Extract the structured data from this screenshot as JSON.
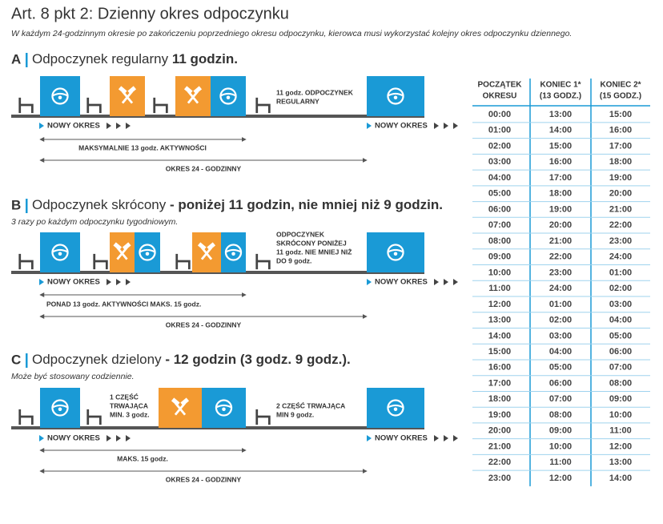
{
  "header": {
    "title": "Art. 8 pkt 2: Dzienny okres odpoczynku",
    "subtitle": "W każdym 24-godzinnym okresie po zakończeniu poprzedniego okresu odpoczynku, kierowca musi wykorzystać kolejny okres odpoczynku dziennego."
  },
  "sections": [
    {
      "letter": "A",
      "heading": "Odpoczynek regularny",
      "heading_bold": "11 godzin.",
      "rest_label": [
        "11 godz. ODPOCZYNEK",
        "REGULARNY"
      ],
      "new_period": [
        "NOWY OKRES",
        "NOWY OKRES"
      ],
      "span_short": "MAKSYMALNIE 13 godz. AKTYWNOŚCI",
      "span_long": "OKRES 24 - GODZINNY"
    },
    {
      "letter": "B",
      "heading": "Odpoczynek skrócony",
      "heading_bold": "- poniżej 11 godzin, nie mniej niż 9 godzin.",
      "note": "3 razy po każdym odpoczynku tygodniowym.",
      "rest_label": [
        "ODPOCZYNEK",
        "SKRÓCONY PONIŻEJ",
        "11 godz. NIE MNIEJ NIŻ",
        "DO 9 godz."
      ],
      "new_period": [
        "NOWY OKRES",
        "NOWY OKRES"
      ],
      "span_short": "PONAD 13 godz. AKTYWNOŚCI MAKS. 15 godz.",
      "span_long": "OKRES 24 - GODZINNY"
    },
    {
      "letter": "C",
      "heading": "Odpoczynek dzielony",
      "heading_bold": "- 12 godzin (3 godz. 9 godz.).",
      "note": "Może być stosowany codziennie.",
      "part1_label": [
        "1 CZĘŚĆ",
        "TRWAJĄCA",
        "MIN. 3 godz."
      ],
      "rest_label": [
        "2 CZĘŚĆ TRWAJĄCA",
        "MIN 9 godz."
      ],
      "new_period": [
        "NOWY OKRES",
        "NOWY OKRES"
      ],
      "span_short": "MAKS. 15 godz.",
      "span_long": "OKRES 24 - GODZINNY"
    }
  ],
  "table": {
    "columns": [
      [
        "POCZĄTEK",
        "OKRESU"
      ],
      [
        "KONIEC 1*",
        "(13 GODZ.)"
      ],
      [
        "KONIEC 2*",
        "(15 GODZ.)"
      ]
    ],
    "rows": [
      [
        "00:00",
        "13:00",
        "15:00"
      ],
      [
        "01:00",
        "14:00",
        "16:00"
      ],
      [
        "02:00",
        "15:00",
        "17:00"
      ],
      [
        "03:00",
        "16:00",
        "18:00"
      ],
      [
        "04:00",
        "17:00",
        "19:00"
      ],
      [
        "05:00",
        "18:00",
        "20:00"
      ],
      [
        "06:00",
        "19:00",
        "21:00"
      ],
      [
        "07:00",
        "20:00",
        "22:00"
      ],
      [
        "08:00",
        "21:00",
        "23:00"
      ],
      [
        "09:00",
        "22:00",
        "24:00"
      ],
      [
        "10:00",
        "23:00",
        "01:00"
      ],
      [
        "11:00",
        "24:00",
        "02:00"
      ],
      [
        "12:00",
        "01:00",
        "03:00"
      ],
      [
        "13:00",
        "02:00",
        "04:00"
      ],
      [
        "14:00",
        "03:00",
        "05:00"
      ],
      [
        "15:00",
        "04:00",
        "06:00"
      ],
      [
        "16:00",
        "05:00",
        "07:00"
      ],
      [
        "17:00",
        "06:00",
        "08:00"
      ],
      [
        "18:00",
        "07:00",
        "09:00"
      ],
      [
        "19:00",
        "08:00",
        "10:00"
      ],
      [
        "20:00",
        "09:00",
        "11:00"
      ],
      [
        "21:00",
        "10:00",
        "12:00"
      ],
      [
        "22:00",
        "11:00",
        "13:00"
      ],
      [
        "23:00",
        "12:00",
        "14:00"
      ]
    ]
  }
}
